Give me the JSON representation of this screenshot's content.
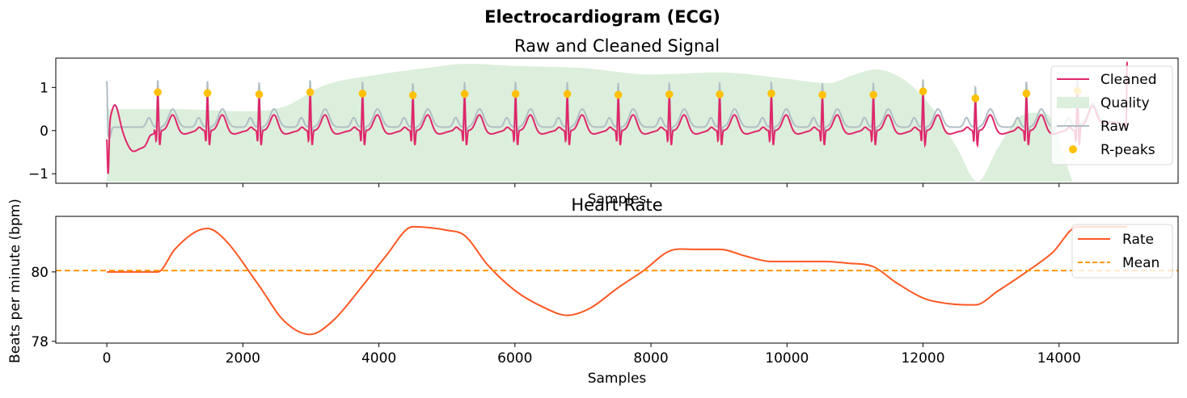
{
  "figure": {
    "suptitle": "Electrocardiogram (ECG)"
  },
  "chart_data": [
    {
      "type": "line",
      "title": "Raw and Cleaned Signal",
      "xlabel": "Samples",
      "ylabel": "",
      "xlim": [
        -750,
        15750
      ],
      "ylim": [
        -1.22,
        1.68
      ],
      "xticks": [
        0,
        2000,
        4000,
        6000,
        8000,
        10000,
        12000,
        14000
      ],
      "xticklabels_shown": false,
      "yticks": [
        -1,
        0,
        1
      ],
      "yticklabels": [
        "−1",
        "0",
        "1"
      ],
      "legend_position": "upper right",
      "legend": [
        "Cleaned",
        "Quality",
        "Raw",
        "R-peaks"
      ],
      "colors": {
        "cleaned": "#E0266A",
        "raw": "#B0BEC5",
        "quality": "#DCEFDC",
        "rpeaks": "#FFC107"
      },
      "sample_count": 15000,
      "r_peaks": {
        "x": [
          750,
          1480,
          2240,
          2990,
          3760,
          4500,
          5260,
          6010,
          6770,
          7520,
          8270,
          9010,
          9770,
          10520,
          11270,
          12000,
          12770,
          13520,
          14270
        ],
        "y": [
          0.89,
          0.87,
          0.84,
          0.89,
          0.86,
          0.82,
          0.85,
          0.85,
          0.85,
          0.83,
          0.84,
          0.84,
          0.86,
          0.83,
          0.83,
          0.91,
          0.75,
          0.86,
          0.92
        ]
      },
      "quality": {
        "baseline": -1.18,
        "x": [
          0,
          1000,
          2000,
          2600,
          3200,
          4000,
          4700,
          5300,
          6000,
          7000,
          8000,
          9000,
          10000,
          10600,
          11000,
          11300,
          11700,
          12100,
          12500,
          12800,
          13100,
          13400,
          13800,
          14200
        ],
        "y": [
          0.5,
          0.5,
          0.45,
          0.55,
          1.05,
          1.3,
          1.45,
          1.55,
          1.5,
          1.45,
          1.3,
          1.35,
          1.2,
          1.1,
          1.3,
          1.42,
          1.2,
          0.6,
          -0.4,
          -1.18,
          -0.4,
          0.3,
          0.4,
          -1.18
        ]
      }
    },
    {
      "type": "line",
      "title": "Heart Rate",
      "xlabel": "Samples",
      "ylabel": "Beats per minute (bpm)",
      "xlim": [
        -750,
        15750
      ],
      "ylim": [
        77.95,
        81.6
      ],
      "xticks": [
        0,
        2000,
        4000,
        6000,
        8000,
        10000,
        12000,
        14000
      ],
      "xticklabels": [
        "0",
        "2000",
        "4000",
        "6000",
        "8000",
        "10000",
        "12000",
        "14000"
      ],
      "yticks": [
        78,
        80
      ],
      "yticklabels": [
        "78",
        "80"
      ],
      "legend_position": "upper right",
      "legend": [
        "Rate",
        "Mean"
      ],
      "colors": {
        "rate": "#FF5722",
        "mean": "#FF9800"
      },
      "mean": 80.04,
      "rate": {
        "x": [
          0,
          750,
          1000,
          1300,
          1480,
          1700,
          2240,
          2600,
          2990,
          3300,
          3760,
          4100,
          4500,
          5000,
          5260,
          5600,
          6010,
          6400,
          6770,
          7100,
          7520,
          7900,
          8270,
          8600,
          9010,
          9400,
          9770,
          10100,
          10520,
          10900,
          11270,
          11600,
          12000,
          12400,
          12770,
          13100,
          13520,
          13900,
          14270,
          15000
        ],
        "y": [
          80.0,
          80.0,
          80.65,
          81.15,
          81.25,
          81.0,
          79.6,
          78.6,
          78.2,
          78.55,
          79.6,
          80.45,
          81.3,
          81.2,
          81.05,
          80.2,
          79.45,
          79.0,
          78.75,
          78.95,
          79.55,
          80.05,
          80.6,
          80.65,
          80.65,
          80.45,
          80.3,
          80.3,
          80.3,
          80.25,
          80.15,
          79.7,
          79.25,
          79.08,
          79.05,
          79.45,
          80.0,
          80.55,
          81.3,
          81.3
        ]
      }
    }
  ]
}
